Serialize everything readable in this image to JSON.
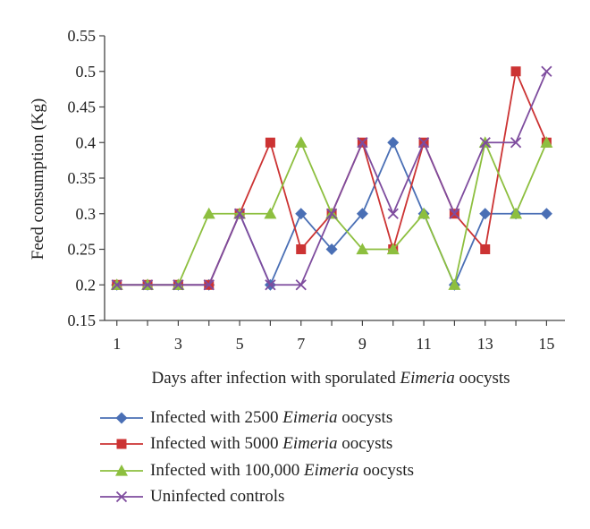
{
  "chart_data": {
    "type": "line",
    "xlabel_prefix": "Days after infection with sporulated ",
    "xlabel_italic": "Eimeria",
    "xlabel_suffix": " oocysts",
    "ylabel": "Feed consumption (Kg)",
    "x": [
      1,
      2,
      3,
      4,
      5,
      6,
      7,
      8,
      9,
      10,
      11,
      12,
      13,
      14,
      15
    ],
    "xlim": [
      0.6,
      15.6
    ],
    "x_ticks": [
      "1",
      "3",
      "5",
      "7",
      "9",
      "11",
      "13",
      "15"
    ],
    "ylim": [
      0.15,
      0.55
    ],
    "y_ticks": [
      "0.55",
      "0.5",
      "0.45",
      "0.4",
      "0.35",
      "0.3",
      "0.25",
      "0.2",
      "0.15"
    ],
    "grid": false,
    "legend_position": "bottom",
    "series": [
      {
        "name_prefix": "Infected with 2500 ",
        "name_italic": "Eimeria",
        "name_suffix": " oocysts",
        "color": "#4a6fb5",
        "marker": "diamond",
        "values": [
          0.2,
          0.2,
          0.2,
          0.2,
          0.3,
          0.2,
          0.3,
          0.25,
          0.3,
          0.4,
          0.3,
          0.2,
          0.3,
          0.3,
          0.3
        ]
      },
      {
        "name_prefix": "Infected with 5000 ",
        "name_italic": "Eimeria",
        "name_suffix": " oocysts",
        "color": "#cc3333",
        "marker": "square",
        "values": [
          0.2,
          0.2,
          0.2,
          0.2,
          0.3,
          0.4,
          0.25,
          0.3,
          0.4,
          0.25,
          0.4,
          0.3,
          0.25,
          0.5,
          0.4
        ]
      },
      {
        "name_prefix": "Infected with 100,000 ",
        "name_italic": "Eimeria",
        "name_suffix": " oocysts",
        "color": "#8dbf3f",
        "marker": "triangle",
        "values": [
          0.2,
          0.2,
          0.2,
          0.3,
          0.3,
          0.3,
          0.4,
          0.3,
          0.25,
          0.25,
          0.3,
          0.2,
          0.4,
          0.3,
          0.4
        ]
      },
      {
        "name_prefix": "Uninfected controls",
        "name_italic": "",
        "name_suffix": "",
        "color": "#7e4c9e",
        "marker": "x",
        "values": [
          0.2,
          0.2,
          0.2,
          0.2,
          0.3,
          0.2,
          0.2,
          0.3,
          0.4,
          0.3,
          0.4,
          0.3,
          0.4,
          0.4,
          0.5
        ]
      }
    ]
  }
}
